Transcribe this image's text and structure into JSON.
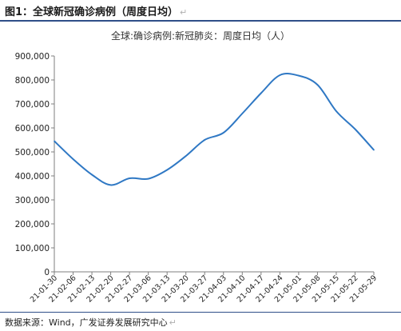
{
  "figure": {
    "title": "图1：全球新冠确诊病例（周度日均）",
    "paragraph_mark": "↵",
    "source": "数据来源：Wind，广发证券发展研究中心"
  },
  "colors": {
    "line": "#2f78c4",
    "rule": "#2f4f88"
  },
  "chart_data": {
    "type": "line",
    "title": "全球:确诊病例:新冠肺炎：周度日均（人）",
    "xlabel": "",
    "ylabel": "",
    "ylim": [
      0,
      900000
    ],
    "yticks": [
      0,
      100000,
      200000,
      300000,
      400000,
      500000,
      600000,
      700000,
      800000,
      900000
    ],
    "ytick_labels": [
      "0",
      "100,000",
      "200,000",
      "300,000",
      "400,000",
      "500,000",
      "600,000",
      "700,000",
      "800,000",
      "900,000"
    ],
    "grid": false,
    "legend": "none",
    "categories": [
      "21-01-30",
      "21-02-06",
      "21-02-13",
      "21-02-20",
      "21-02-27",
      "21-03-06",
      "21-03-13",
      "21-03-20",
      "21-03-27",
      "21-04-03",
      "21-04-10",
      "21-04-17",
      "21-04-24",
      "21-05-01",
      "21-05-08",
      "21-05-15",
      "21-05-22",
      "21-05-29"
    ],
    "series": [
      {
        "values": [
          545000,
          470000,
          405000,
          362000,
          390000,
          388000,
          425000,
          483000,
          550000,
          580000,
          660000,
          745000,
          820000,
          818000,
          780000,
          670000,
          595000,
          508000
        ]
      }
    ]
  }
}
